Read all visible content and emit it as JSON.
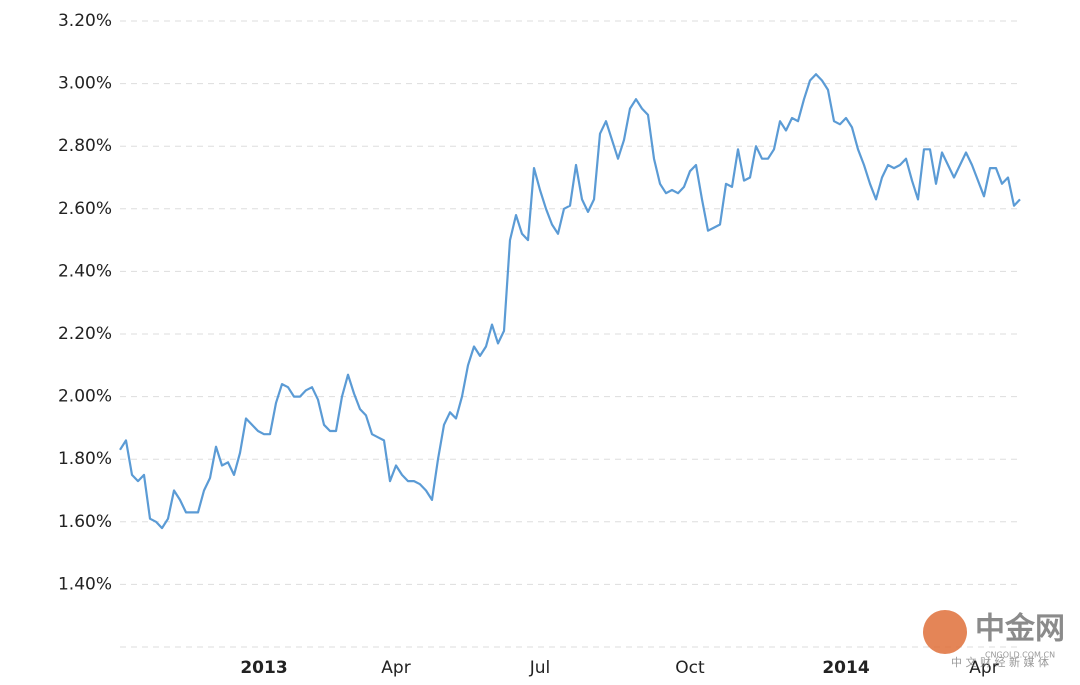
{
  "chart_data": {
    "type": "line",
    "color": "#5b9bd5",
    "categories": [
      null,
      null,
      null,
      null,
      null,
      null,
      null,
      null,
      null,
      null,
      null,
      null,
      null,
      null,
      null,
      null,
      null,
      null,
      null,
      null,
      null,
      null,
      null,
      null,
      "2013",
      null,
      null,
      null,
      null,
      null,
      null,
      null,
      null,
      null,
      null,
      null,
      null,
      null,
      null,
      null,
      null,
      null,
      null,
      null,
      null,
      null,
      "Apr",
      null,
      null,
      null,
      null,
      null,
      null,
      null,
      null,
      null,
      null,
      null,
      null,
      null,
      null,
      null,
      null,
      null,
      null,
      null,
      null,
      null,
      null,
      null,
      "Jul",
      null,
      null,
      null,
      null,
      null,
      null,
      null,
      null,
      null,
      null,
      null,
      null,
      null,
      null,
      null,
      null,
      null,
      null,
      null,
      null,
      null,
      null,
      null,
      null,
      "Oct",
      null,
      null,
      null,
      null,
      null,
      null,
      null,
      null,
      null,
      null,
      null,
      null,
      null,
      null,
      null,
      null,
      null,
      null,
      null,
      null,
      null,
      null,
      null,
      null,
      null,
      "2014",
      null,
      null,
      null,
      null,
      null,
      null,
      null,
      null,
      null,
      null,
      null,
      null,
      null,
      null,
      null,
      null,
      null,
      null,
      null,
      null,
      null,
      null,
      "Apr",
      null,
      null,
      null,
      null,
      null,
      null
    ],
    "values": [
      1.83,
      1.86,
      1.75,
      1.73,
      1.75,
      1.61,
      1.6,
      1.58,
      1.61,
      1.7,
      1.67,
      1.63,
      1.63,
      1.63,
      1.7,
      1.74,
      1.84,
      1.78,
      1.79,
      1.75,
      1.82,
      1.93,
      1.91,
      1.89,
      1.88,
      1.88,
      1.98,
      2.04,
      2.03,
      2.0,
      2.0,
      2.02,
      2.03,
      1.99,
      1.91,
      1.89,
      1.89,
      2.0,
      2.07,
      2.01,
      1.96,
      1.94,
      1.88,
      1.87,
      1.86,
      1.73,
      1.78,
      1.75,
      1.73,
      1.73,
      1.72,
      1.7,
      1.67,
      1.8,
      1.91,
      1.95,
      1.93,
      2.0,
      2.1,
      2.16,
      2.13,
      2.16,
      2.23,
      2.17,
      2.21,
      2.5,
      2.58,
      2.52,
      2.5,
      2.73,
      2.66,
      2.6,
      2.55,
      2.52,
      2.6,
      2.61,
      2.74,
      2.63,
      2.59,
      2.63,
      2.84,
      2.88,
      2.82,
      2.76,
      2.82,
      2.92,
      2.95,
      2.92,
      2.9,
      2.76,
      2.68,
      2.65,
      2.66,
      2.65,
      2.67,
      2.72,
      2.74,
      2.63,
      2.53,
      2.54,
      2.55,
      2.68,
      2.67,
      2.79,
      2.69,
      2.7,
      2.8,
      2.76,
      2.76,
      2.79,
      2.88,
      2.85,
      2.89,
      2.88,
      2.95,
      3.01,
      3.03,
      3.01,
      2.98,
      2.88,
      2.87,
      2.89,
      2.86,
      2.79,
      2.74,
      2.68,
      2.63,
      2.7,
      2.74,
      2.73,
      2.74,
      2.76,
      2.69,
      2.63,
      2.79,
      2.79,
      2.68,
      2.78,
      2.74,
      2.7,
      2.74,
      2.78,
      2.74,
      2.69,
      2.64,
      2.73,
      2.73,
      2.68,
      2.7,
      2.61,
      2.63
    ],
    "ylim": [
      1.2,
      3.2
    ],
    "yticks": [
      {
        "value": 1.4,
        "label": "1.40%"
      },
      {
        "value": 1.6,
        "label": "1.60%"
      },
      {
        "value": 1.8,
        "label": "1.80%"
      },
      {
        "value": 2.0,
        "label": "2.00%"
      },
      {
        "value": 2.2,
        "label": "2.20%"
      },
      {
        "value": 2.4,
        "label": "2.40%"
      },
      {
        "value": 2.6,
        "label": "2.60%"
      },
      {
        "value": 2.8,
        "label": "2.80%"
      },
      {
        "value": 3.0,
        "label": "3.00%"
      },
      {
        "value": 3.2,
        "label": "3.20%"
      }
    ],
    "grid": true
  },
  "watermark": {
    "logo": "中金网",
    "domain": "CNGOLD.COM.CN",
    "tagline": "中 文 财 经 新 媒 体"
  }
}
